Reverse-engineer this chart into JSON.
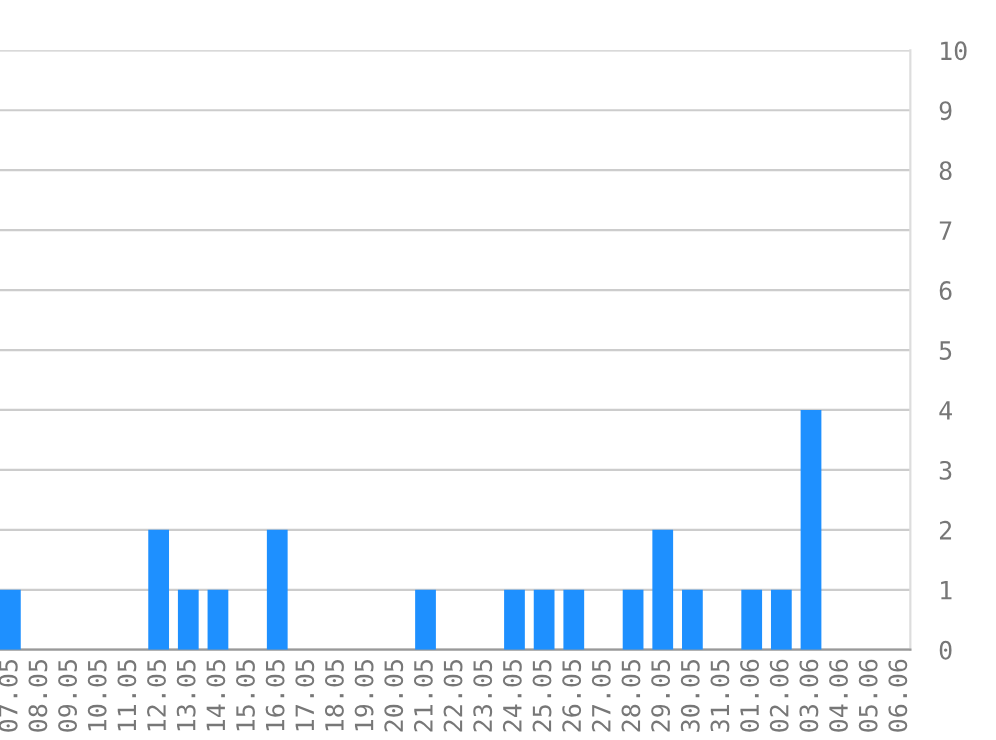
{
  "chart_data": {
    "type": "bar",
    "categories": [
      "07.05",
      "08.05",
      "09.05",
      "10.05",
      "11.05",
      "12.05",
      "13.05",
      "14.05",
      "15.05",
      "16.05",
      "17.05",
      "18.05",
      "19.05",
      "20.05",
      "21.05",
      "22.05",
      "23.05",
      "24.05",
      "25.05",
      "26.05",
      "27.05",
      "28.05",
      "29.05",
      "30.05",
      "31.05",
      "01.06",
      "02.06",
      "03.06",
      "04.06",
      "05.06",
      "06.06"
    ],
    "values": [
      1,
      0,
      0,
      0,
      0,
      2,
      1,
      1,
      0,
      2,
      0,
      0,
      0,
      0,
      1,
      0,
      0,
      1,
      1,
      1,
      0,
      1,
      2,
      1,
      0,
      1,
      1,
      4,
      0,
      0,
      0
    ],
    "color": "#1e90ff",
    "ylim": [
      0,
      10
    ],
    "yticks": [
      0,
      1,
      2,
      3,
      4,
      5,
      6,
      7,
      8,
      9,
      10
    ],
    "grid": "y"
  }
}
